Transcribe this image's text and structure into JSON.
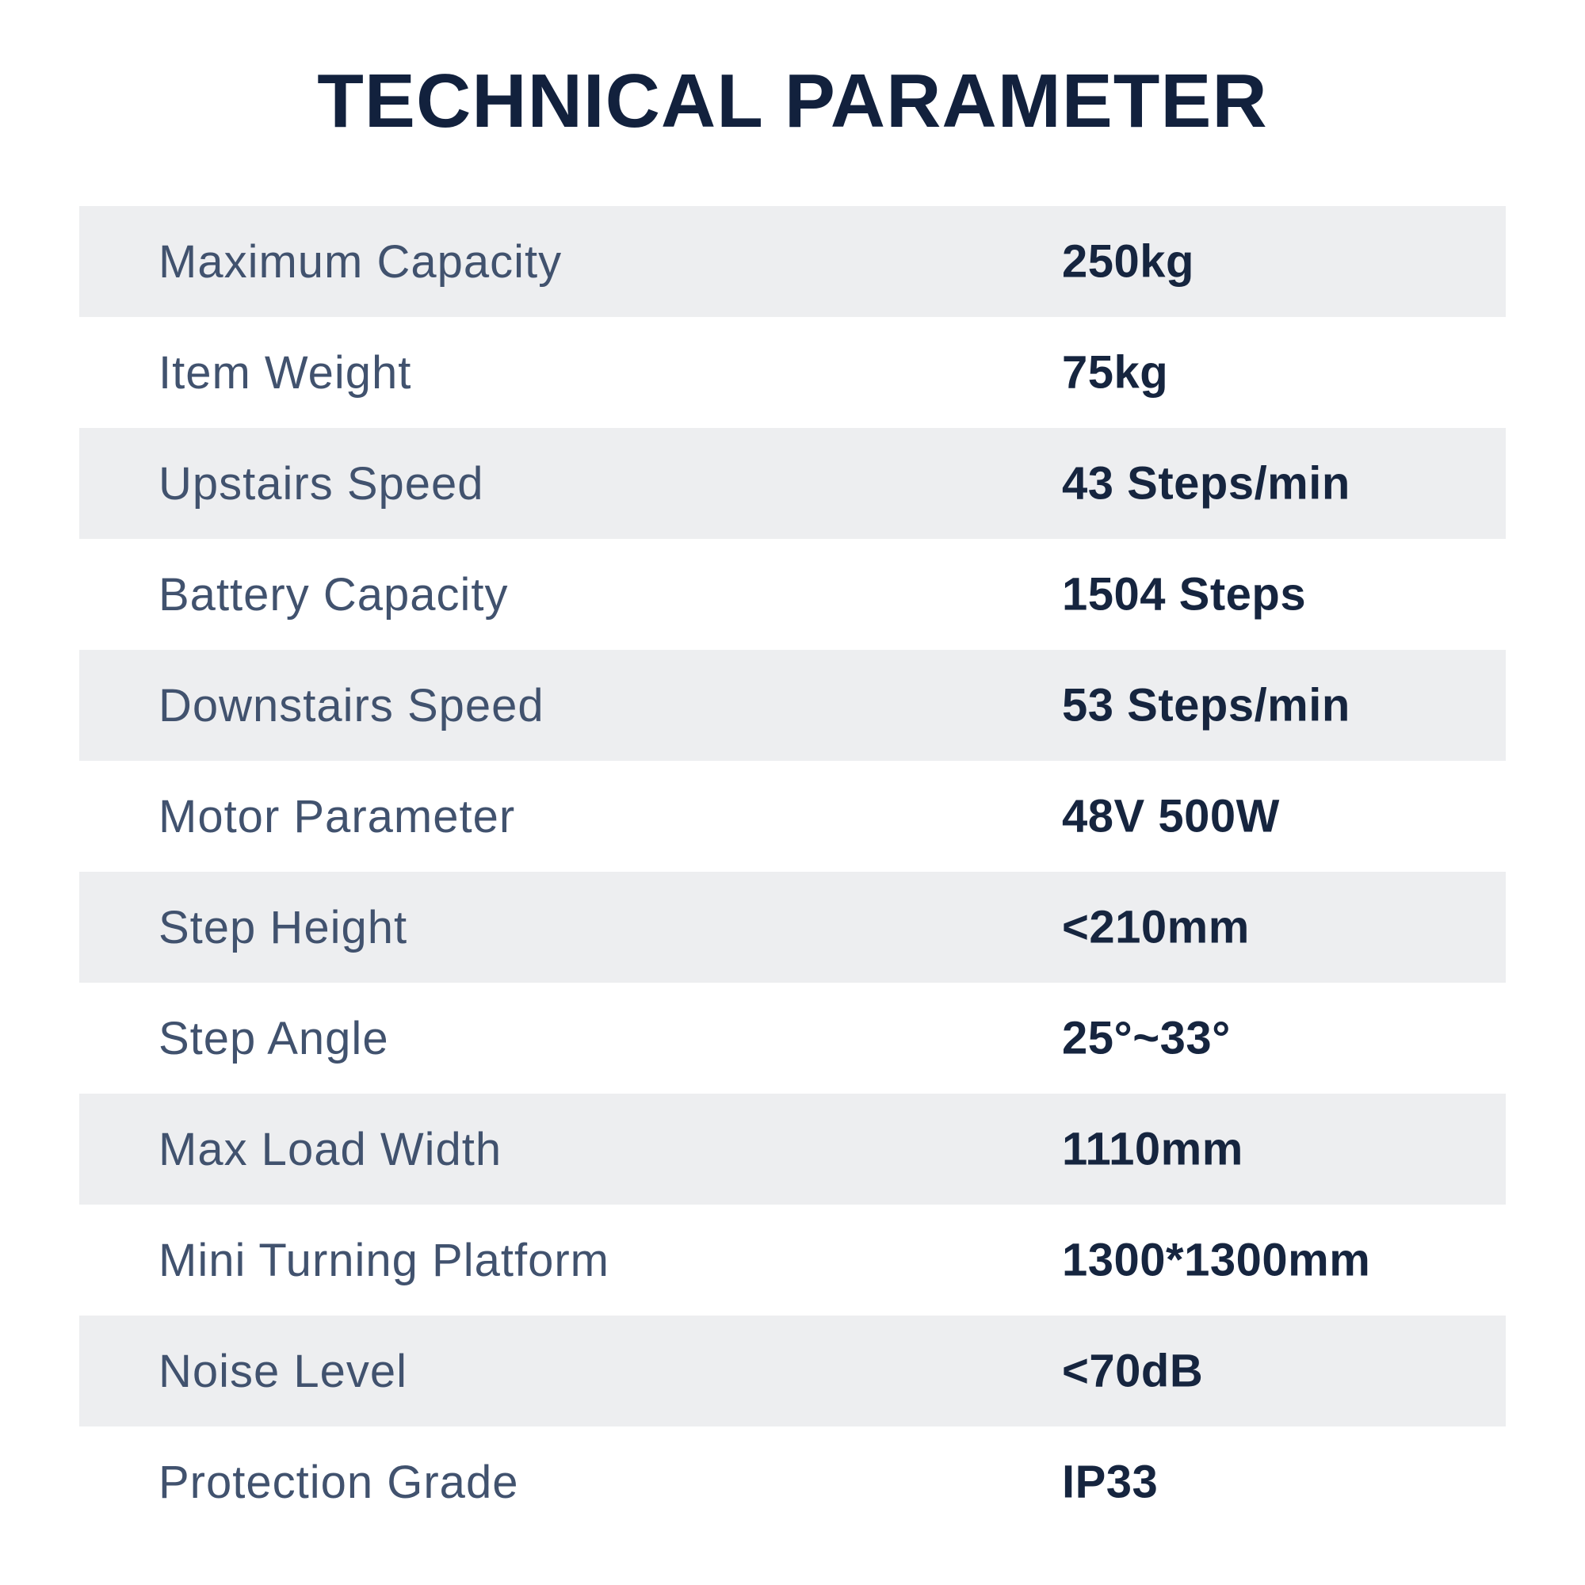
{
  "title": "TECHNICAL PARAMETER",
  "colors": {
    "title_text": "#12213d",
    "label_text": "#41526e",
    "value_text": "#16253f",
    "shaded_row_bg": "#edeef0",
    "page_bg": "#ffffff"
  },
  "table": {
    "rows": [
      {
        "label": "Maximum Capacity",
        "value": "250kg"
      },
      {
        "label": "Item Weight",
        "value": "75kg"
      },
      {
        "label": "Upstairs Speed",
        "value": "43 Steps/min"
      },
      {
        "label": "Battery Capacity",
        "value": "1504 Steps"
      },
      {
        "label": "Downstairs Speed",
        "value": "53 Steps/min"
      },
      {
        "label": "Motor Parameter",
        "value": "48V 500W"
      },
      {
        "label": "Step Height",
        "value": "<210mm"
      },
      {
        "label": "Step Angle",
        "value": "25°~33°"
      },
      {
        "label": "Max Load Width",
        "value": "1110mm"
      },
      {
        "label": "Mini Turning Platform",
        "value": "1300*1300mm"
      },
      {
        "label": "Noise Level",
        "value": "<70dB"
      },
      {
        "label": "Protection Grade",
        "value": "IP33"
      }
    ]
  }
}
